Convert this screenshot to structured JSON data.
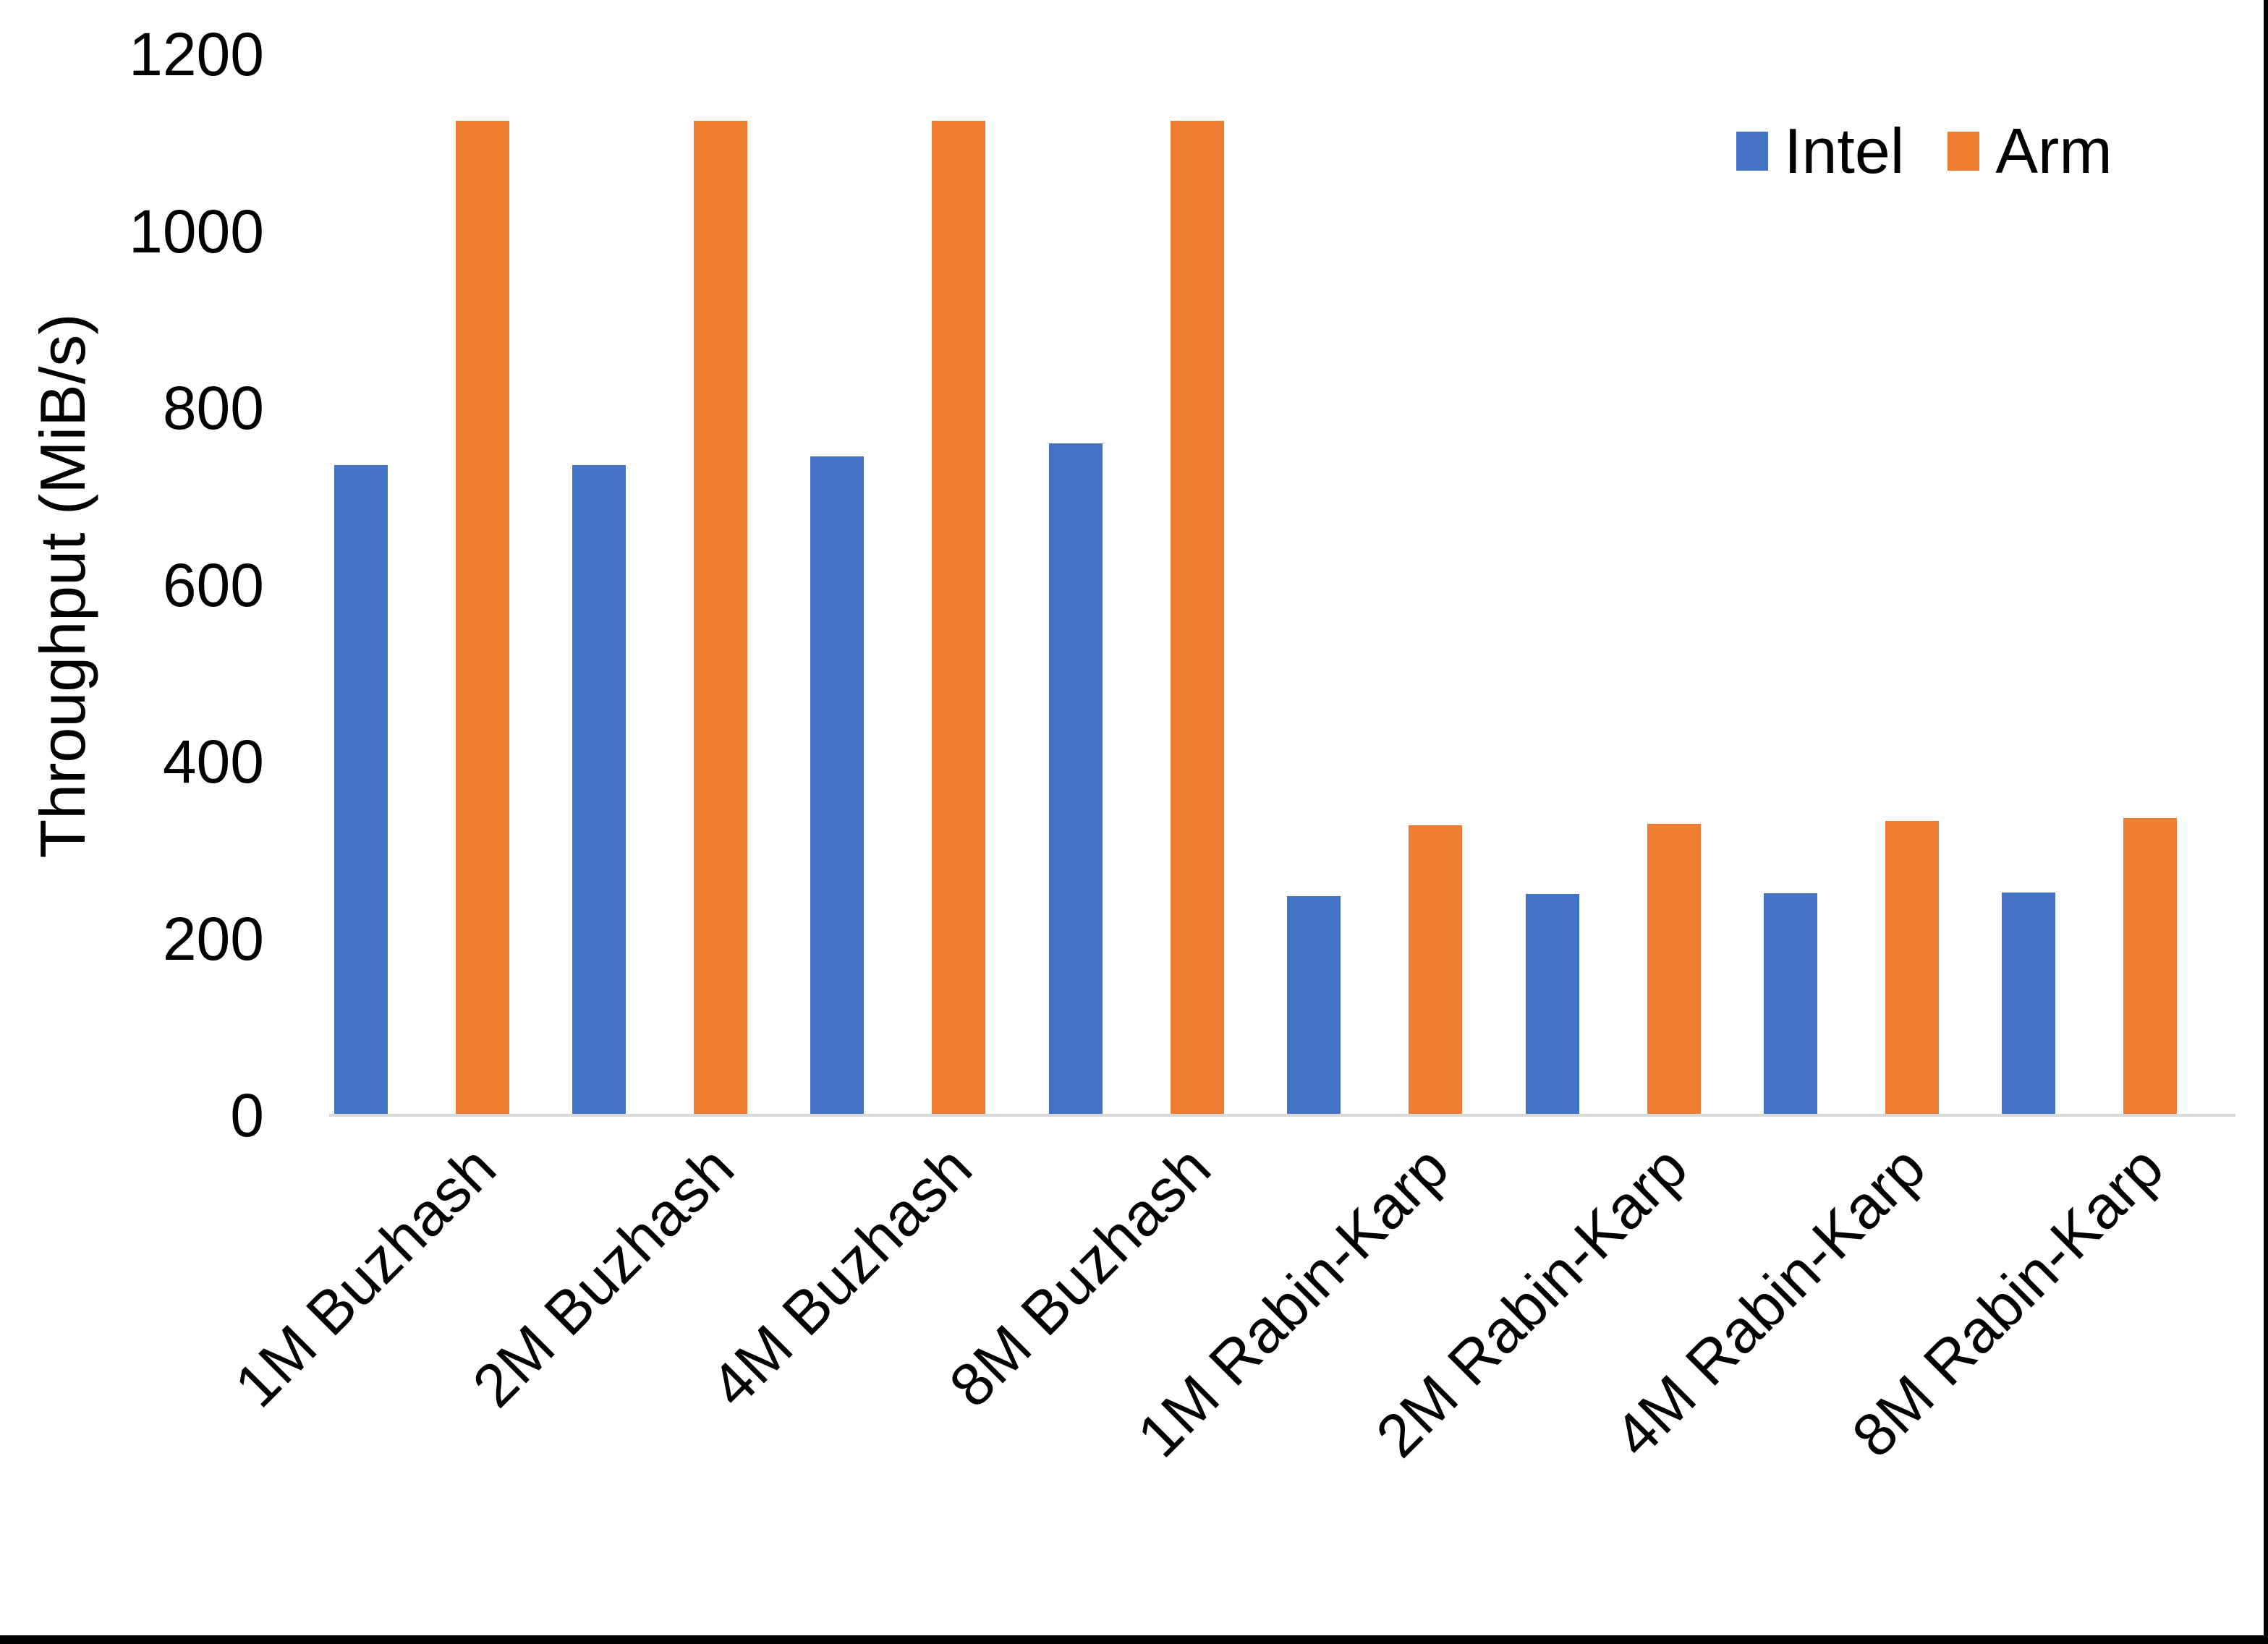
{
  "chart_data": {
    "type": "bar",
    "title": "",
    "ylabel": "Throughput (MiB/s)",
    "xlabel": "",
    "ylim": [
      0,
      1200
    ],
    "y_ticks": [
      0,
      200,
      400,
      600,
      800,
      1000,
      1200
    ],
    "grid": false,
    "legend_position": "top-right",
    "categories": [
      "1M Buzhash",
      "2M Buzhash",
      "4M Buzhash",
      "8M Buzhash",
      "1M Rabin-Karp",
      "2M Rabin-Karp",
      "4M Rabin-Karp",
      "8M Rabin-Karp"
    ],
    "series": [
      {
        "name": "Intel",
        "color": "#4472C4",
        "values": [
          735,
          735,
          745,
          760,
          248,
          250,
          251,
          252
        ]
      },
      {
        "name": "Arm",
        "color": "#ED7D31",
        "values": [
          1125,
          1125,
          1125,
          1125,
          328,
          330,
          333,
          336
        ]
      }
    ]
  },
  "colors": {
    "axis_line": "#D9D9D9",
    "text": "#000000",
    "background": "#FFFFFF",
    "frame": "#000000"
  }
}
